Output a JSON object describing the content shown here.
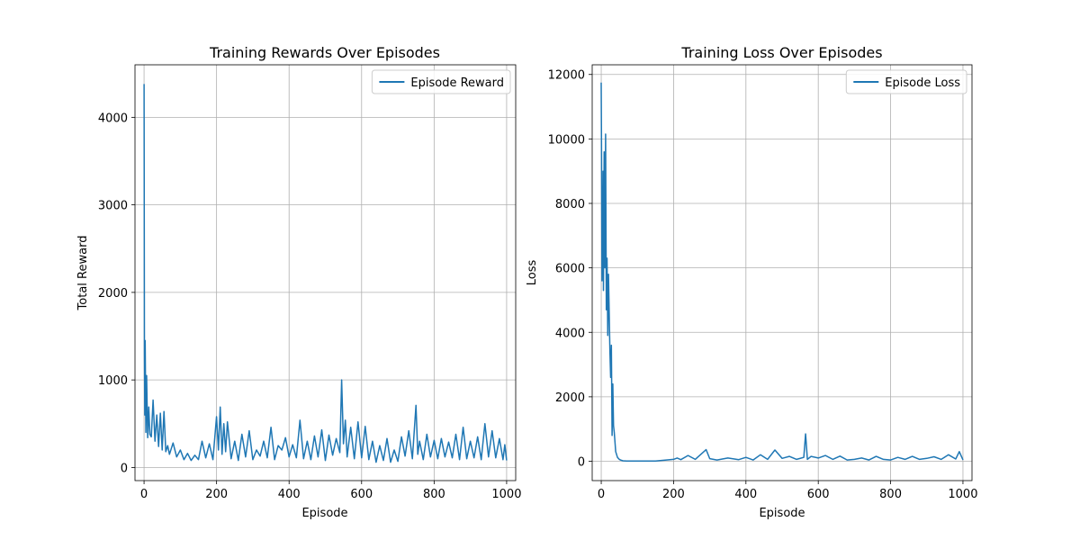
{
  "colors": {
    "series": "#1f77b4",
    "grid": "#b0b0b0",
    "axis": "#000000"
  },
  "chart_data": [
    {
      "type": "line",
      "title": "Training Rewards Over Episodes",
      "xlabel": "Episode",
      "ylabel": "Total Reward",
      "xlim": [
        -25,
        1025
      ],
      "ylim": [
        -150,
        4600
      ],
      "xticks": [
        0,
        200,
        400,
        600,
        800,
        1000
      ],
      "yticks": [
        0,
        1000,
        2000,
        3000,
        4000
      ],
      "grid": true,
      "legend_position": "upper right",
      "series": [
        {
          "name": "Episode Reward",
          "color": "#1f77b4",
          "x": [
            0,
            1,
            2,
            3,
            5,
            7,
            10,
            13,
            16,
            20,
            25,
            30,
            35,
            40,
            45,
            50,
            55,
            60,
            65,
            70,
            80,
            90,
            100,
            110,
            120,
            130,
            140,
            150,
            160,
            170,
            180,
            190,
            200,
            205,
            210,
            215,
            220,
            225,
            230,
            240,
            250,
            260,
            270,
            280,
            290,
            300,
            310,
            320,
            330,
            340,
            350,
            360,
            370,
            380,
            390,
            400,
            410,
            420,
            430,
            440,
            450,
            460,
            470,
            480,
            490,
            500,
            510,
            520,
            530,
            540,
            545,
            550,
            555,
            560,
            570,
            580,
            590,
            600,
            610,
            620,
            630,
            640,
            650,
            660,
            670,
            680,
            690,
            700,
            710,
            720,
            730,
            740,
            750,
            755,
            760,
            770,
            780,
            790,
            800,
            810,
            820,
            830,
            840,
            850,
            860,
            870,
            880,
            890,
            900,
            910,
            920,
            930,
            940,
            950,
            960,
            970,
            980,
            990,
            995,
            1000
          ],
          "y": [
            4380,
            1300,
            600,
            1450,
            400,
            1050,
            340,
            690,
            380,
            350,
            770,
            300,
            600,
            240,
            620,
            200,
            640,
            180,
            250,
            150,
            280,
            120,
            200,
            90,
            160,
            80,
            140,
            90,
            300,
            110,
            270,
            90,
            580,
            200,
            690,
            150,
            500,
            180,
            520,
            100,
            300,
            80,
            380,
            120,
            420,
            90,
            200,
            130,
            300,
            110,
            460,
            90,
            250,
            200,
            340,
            120,
            260,
            110,
            540,
            100,
            300,
            90,
            360,
            120,
            430,
            80,
            370,
            140,
            330,
            170,
            1000,
            270,
            540,
            120,
            460,
            100,
            520,
            110,
            470,
            90,
            300,
            60,
            250,
            80,
            330,
            60,
            200,
            70,
            350,
            130,
            420,
            100,
            710,
            150,
            300,
            90,
            380,
            120,
            310,
            100,
            330,
            120,
            290,
            110,
            380,
            90,
            460,
            100,
            300,
            110,
            350,
            90,
            500,
            120,
            420,
            110,
            330,
            90,
            260,
            80
          ]
        }
      ]
    },
    {
      "type": "line",
      "title": "Training Loss Over Episodes",
      "xlabel": "Episode",
      "ylabel": "Loss",
      "xlim": [
        -25,
        1025
      ],
      "ylim": [
        -600,
        12300
      ],
      "xticks": [
        0,
        200,
        400,
        600,
        800,
        1000
      ],
      "yticks": [
        0,
        2000,
        4000,
        6000,
        8000,
        10000,
        12000
      ],
      "grid": true,
      "legend_position": "upper right",
      "series": [
        {
          "name": "Episode Loss",
          "color": "#1f77b4",
          "x": [
            0,
            1,
            2,
            3,
            4,
            5,
            6,
            8,
            10,
            12,
            14,
            16,
            18,
            20,
            22,
            24,
            26,
            28,
            30,
            32,
            34,
            36,
            38,
            40,
            45,
            50,
            55,
            60,
            70,
            80,
            100,
            150,
            200,
            210,
            220,
            240,
            260,
            290,
            300,
            320,
            350,
            380,
            400,
            420,
            440,
            460,
            480,
            500,
            520,
            540,
            560,
            565,
            570,
            580,
            600,
            620,
            640,
            660,
            680,
            700,
            720,
            740,
            760,
            780,
            800,
            820,
            840,
            860,
            880,
            900,
            920,
            940,
            960,
            980,
            990,
            1000
          ],
          "y": [
            11750,
            9500,
            5600,
            7800,
            6200,
            9000,
            5300,
            9600,
            6000,
            10150,
            4700,
            6300,
            3900,
            5800,
            4600,
            3400,
            2600,
            3600,
            800,
            2400,
            1100,
            900,
            600,
            300,
            120,
            60,
            30,
            15,
            10,
            5,
            5,
            5,
            60,
            100,
            50,
            180,
            60,
            360,
            80,
            40,
            100,
            50,
            120,
            40,
            200,
            60,
            350,
            90,
            150,
            60,
            120,
            850,
            60,
            150,
            100,
            180,
            60,
            160,
            40,
            60,
            100,
            40,
            150,
            60,
            40,
            120,
            60,
            150,
            60,
            90,
            140,
            60,
            200,
            70,
            300,
            40
          ]
        }
      ]
    }
  ]
}
